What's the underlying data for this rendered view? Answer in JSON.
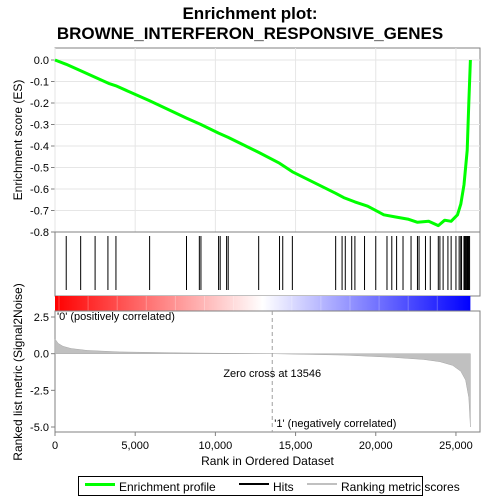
{
  "chart_data": {
    "type": "line",
    "title_line1": "Enrichment plot:",
    "title_line2": "BROWNE_INTERFERON_RESPONSIVE_GENES",
    "xlabel": "Rank in Ordered Dataset",
    "ylabel_top": "Enrichment score (ES)",
    "ylabel_bottom": "Ranked list metric (Signal2Noise)",
    "x_range": [
      0,
      26500
    ],
    "es_ylim": [
      -0.8,
      0.0
    ],
    "es_yticks": [
      "0.0",
      "-0.1",
      "-0.2",
      "-0.3",
      "-0.4",
      "-0.5",
      "-0.6",
      "-0.7",
      "-0.8"
    ],
    "es_ytick_values": [
      0.0,
      -0.1,
      -0.2,
      -0.3,
      -0.4,
      -0.5,
      -0.6,
      -0.7,
      -0.8
    ],
    "metric_ylim": [
      -5.0,
      2.5
    ],
    "metric_yticks": [
      "2.5",
      "0.0",
      "-2.5",
      "-5.0"
    ],
    "metric_ytick_values": [
      2.5,
      0.0,
      -2.5,
      -5.0
    ],
    "xticks": [
      "0",
      "5,000",
      "10,000",
      "15,000",
      "20,000",
      "25,000"
    ],
    "xtick_values": [
      0,
      5000,
      10000,
      15000,
      20000,
      25000
    ],
    "es_curve": {
      "x": [
        0,
        700,
        1600,
        2500,
        3400,
        3800,
        5900,
        8200,
        9100,
        10200,
        10800,
        12700,
        14000,
        14800,
        17500,
        18000,
        18700,
        19500,
        20500,
        21200,
        22000,
        22600,
        23300,
        23900,
        24300,
        24700,
        25100,
        25300,
        25500,
        25700,
        25800,
        25900
      ],
      "y": [
        0.0,
        -0.02,
        -0.05,
        -0.08,
        -0.11,
        -0.12,
        -0.19,
        -0.27,
        -0.3,
        -0.34,
        -0.36,
        -0.43,
        -0.48,
        -0.52,
        -0.62,
        -0.64,
        -0.66,
        -0.68,
        -0.72,
        -0.73,
        -0.74,
        -0.755,
        -0.75,
        -0.77,
        -0.745,
        -0.75,
        -0.72,
        -0.67,
        -0.58,
        -0.42,
        -0.2,
        0.0
      ],
      "color": "#00ff00"
    },
    "hits": [
      700,
      1600,
      2500,
      3300,
      3800,
      5900,
      8200,
      9000,
      9100,
      10200,
      10300,
      10700,
      10800,
      12700,
      14000,
      14200,
      14800,
      17500,
      17900,
      18100,
      18500,
      18700,
      19300,
      20000,
      20700,
      21000,
      21300,
      21700,
      22200,
      22600,
      22700,
      23100,
      23400,
      23900,
      24000,
      24200,
      24500,
      24700,
      25000,
      25200,
      25300,
      25350,
      25500,
      25550,
      25600,
      25650,
      25700,
      25750,
      25800,
      25850
    ],
    "metric_curve": {
      "x": [
        0,
        200,
        500,
        1000,
        2000,
        4000,
        8000,
        13546,
        18000,
        21000,
        23000,
        24000,
        24800,
        25300,
        25600,
        25800,
        25900
      ],
      "y": [
        1.0,
        0.7,
        0.5,
        0.35,
        0.22,
        0.12,
        0.05,
        0.0,
        -0.1,
        -0.25,
        -0.4,
        -0.55,
        -0.8,
        -1.2,
        -1.8,
        -3.0,
        -5.0
      ]
    },
    "zero_cross": 13546,
    "zero_cross_label": "Zero cross at 13546",
    "pos_label": "'0' (positively correlated)",
    "neg_label": "'1' (negatively correlated)",
    "pos_color": "#cc0000",
    "neg_color": "#0000cc",
    "legend": [
      {
        "label": "Enrichment profile",
        "color": "#00ff00"
      },
      {
        "label": "Hits",
        "color": "#000000"
      },
      {
        "label": "Ranking metric scores",
        "color": "#c0c0c0"
      }
    ]
  }
}
